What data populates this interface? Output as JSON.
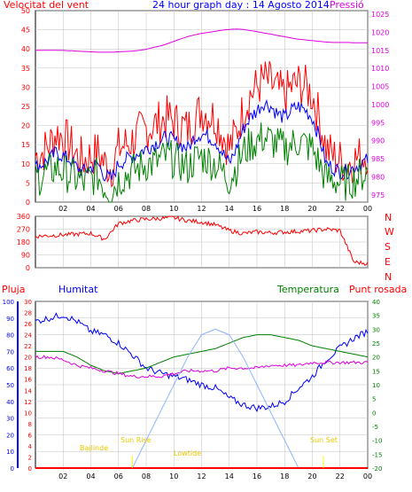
{
  "header": {
    "left_label": "Velocitat del vent",
    "title": "24 hour graph day : 14 Agosto 2014",
    "right_label": "Pressió"
  },
  "colors": {
    "red": "#ff0000",
    "blue": "#0000ff",
    "green": "#008000",
    "magenta": "#dd00dd",
    "lightblue": "#8ab4ff",
    "yellow": "#ffff00",
    "grid": "#c0c0c0"
  },
  "chart_data": [
    {
      "type": "line",
      "name": "wind-panel",
      "x_ticks": [
        "02",
        "04",
        "06",
        "08",
        "10",
        "12",
        "14",
        "16",
        "18",
        "20",
        "22",
        "00"
      ],
      "y_left_ticks": [
        0,
        5,
        10,
        15,
        20,
        25,
        30,
        35,
        40,
        45,
        50
      ],
      "y_right_ticks": [
        975,
        980,
        985,
        990,
        995,
        1000,
        1005,
        1010,
        1015,
        1020,
        1025
      ],
      "ylim_left": [
        0,
        50
      ],
      "ylim_right": [
        973,
        1026
      ],
      "x": [
        0,
        0.5,
        1,
        1.5,
        2,
        2.5,
        3,
        3.5,
        4,
        4.5,
        5,
        5.5,
        6,
        6.5,
        7,
        7.5,
        8,
        8.5,
        9,
        9.5,
        10,
        10.5,
        11,
        11.5,
        12,
        12.5,
        13,
        13.5,
        14,
        14.5,
        15,
        15.5,
        16,
        16.5,
        17,
        17.5,
        18,
        18.5,
        19,
        19.5,
        20,
        20.5,
        21,
        21.5,
        22,
        22.5,
        23,
        23.5,
        24
      ],
      "series": [
        {
          "color": "red",
          "axis": "left",
          "values": [
            12,
            13,
            15,
            18,
            17,
            15,
            12,
            11,
            12,
            13,
            10,
            9,
            14,
            15,
            16,
            18,
            19,
            20,
            21,
            22,
            21,
            20,
            19,
            22,
            24,
            23,
            22,
            18,
            14,
            18,
            24,
            28,
            30,
            32,
            31,
            29,
            28,
            30,
            31,
            30,
            28,
            22,
            14,
            12,
            11,
            10,
            11,
            12,
            13
          ]
        },
        {
          "color": "blue",
          "axis": "left",
          "values": [
            9,
            10,
            11,
            13,
            12,
            11,
            9,
            8,
            9,
            10,
            7,
            6,
            10,
            11,
            12,
            13,
            14,
            15,
            16,
            17,
            16,
            15,
            14,
            17,
            18,
            17,
            16,
            13,
            10,
            14,
            19,
            22,
            24,
            26,
            25,
            23,
            22,
            24,
            25,
            24,
            22,
            17,
            10,
            9,
            8,
            8,
            9,
            10,
            11
          ]
        },
        {
          "color": "green",
          "axis": "left",
          "values": [
            6,
            7,
            8,
            9,
            8,
            7,
            6,
            5,
            6,
            7,
            4,
            3,
            6,
            7,
            8,
            9,
            10,
            10,
            11,
            12,
            11,
            10,
            9,
            11,
            12,
            11,
            10,
            8,
            6,
            9,
            13,
            15,
            16,
            17,
            16,
            15,
            14,
            15,
            16,
            15,
            14,
            10,
            6,
            6,
            5,
            5,
            6,
            7,
            8
          ]
        },
        {
          "color": "magenta",
          "axis": "right",
          "values": [
            1015,
            1015,
            1015,
            1015,
            1015,
            1014.9,
            1014.8,
            1014.7,
            1014.6,
            1014.5,
            1014.5,
            1014.5,
            1014.6,
            1014.7,
            1014.8,
            1015,
            1015.3,
            1015.8,
            1016.2,
            1016.8,
            1017.5,
            1018.2,
            1018.8,
            1019.3,
            1019.7,
            1020,
            1020.3,
            1020.6,
            1020.8,
            1020.9,
            1020.8,
            1020.5,
            1020.2,
            1019.8,
            1019.5,
            1019.1,
            1018.8,
            1018.4,
            1018.1,
            1017.9,
            1017.7,
            1017.5,
            1017.3,
            1017.2,
            1017.2,
            1017.2,
            1017.1,
            1017.1,
            1017.1
          ]
        }
      ]
    },
    {
      "type": "line",
      "name": "direction-panel",
      "y_left_ticks": [
        0,
        90,
        180,
        270,
        360
      ],
      "y_right_labels": [
        "N",
        "W",
        "S",
        "E",
        "N"
      ],
      "ylim": [
        0,
        360
      ],
      "x": [
        0,
        1,
        2,
        3,
        4,
        5,
        6,
        7,
        8,
        9,
        10,
        11,
        12,
        13,
        14,
        15,
        16,
        17,
        18,
        19,
        20,
        21,
        22,
        23,
        24
      ],
      "values": [
        220,
        225,
        230,
        235,
        240,
        200,
        310,
        330,
        340,
        345,
        350,
        330,
        320,
        300,
        260,
        240,
        250,
        245,
        250,
        255,
        260,
        270,
        260,
        40,
        30
      ]
    },
    {
      "type": "line",
      "name": "humidity-panel",
      "left_title": "Pluja",
      "left2_title": "Humitat",
      "center_title": "Temperatura",
      "right_title": "Punt rosada",
      "y_rain_ticks": [
        0,
        2,
        4,
        6,
        8,
        10,
        12,
        14,
        16,
        18,
        20,
        22,
        24,
        26,
        28,
        30
      ],
      "y_hum_ticks": [
        0,
        10,
        20,
        30,
        40,
        50,
        60,
        70,
        80,
        90,
        100
      ],
      "y_temp_ticks": [
        -20,
        -15,
        -10,
        -5,
        0,
        5,
        10,
        15,
        20,
        25,
        30,
        35,
        40
      ],
      "ylim_hum": [
        0,
        100
      ],
      "ylim_temp": [
        -20,
        40
      ],
      "x": [
        0,
        1,
        2,
        3,
        4,
        5,
        6,
        7,
        8,
        9,
        10,
        11,
        12,
        13,
        14,
        15,
        16,
        17,
        18,
        19,
        20,
        21,
        22,
        23,
        24
      ],
      "series": [
        {
          "color": "blue",
          "axis": "hum",
          "values": [
            88,
            90,
            92,
            88,
            82,
            80,
            75,
            68,
            60,
            57,
            55,
            53,
            50,
            48,
            42,
            38,
            36,
            37,
            40,
            48,
            55,
            65,
            72,
            78,
            82
          ]
        },
        {
          "color": "green",
          "axis": "temp",
          "values": [
            22,
            22,
            22,
            20,
            17,
            15,
            14,
            15,
            16,
            18,
            20,
            21,
            22,
            23,
            25,
            27,
            28,
            28,
            27,
            26,
            24,
            23,
            22,
            21,
            20
          ]
        },
        {
          "color": "magenta",
          "axis": "temp",
          "values": [
            20,
            20,
            19,
            17,
            16,
            15,
            14,
            13,
            13,
            13,
            14,
            15,
            15,
            15,
            16,
            16,
            16,
            17,
            17,
            17,
            18,
            18,
            18,
            18,
            18
          ]
        },
        {
          "color": "lightblue",
          "axis": "temp",
          "values": [
            -20,
            -20,
            -20,
            -20,
            -20,
            -20,
            -20,
            -20,
            -10,
            0,
            10,
            20,
            28,
            30,
            28,
            20,
            10,
            0,
            -10,
            -20,
            -20,
            -20,
            -20,
            -20,
            -20
          ]
        },
        {
          "color": "red",
          "axis": "hum",
          "values": [
            0,
            0,
            0,
            0,
            0,
            0,
            0,
            0,
            0,
            0,
            0,
            0,
            0,
            0,
            0,
            0,
            0,
            0,
            0,
            0,
            0,
            0,
            0,
            0,
            0
          ]
        }
      ],
      "annotations": [
        "Bajlinde",
        "Sun Rise",
        "Lowtide",
        "Sun Set"
      ]
    }
  ]
}
